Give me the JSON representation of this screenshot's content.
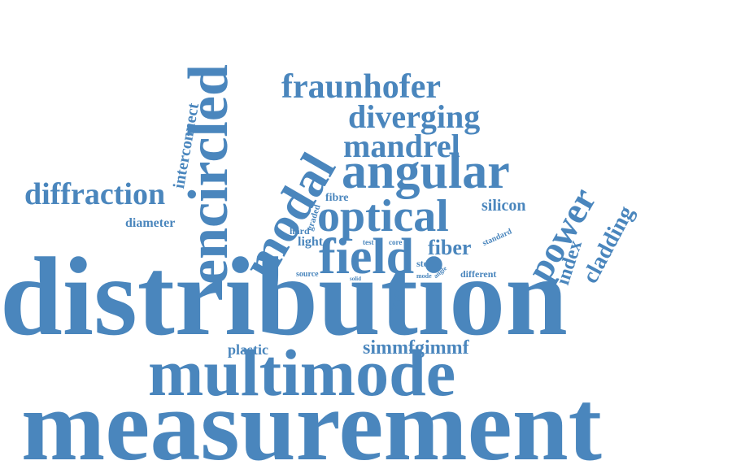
{
  "cloud": {
    "color": "#4a86bd",
    "words": {
      "measurement": "measurement",
      "distribution": "distribution",
      "multimode": "multimode",
      "encircled": "encircled",
      "modal": "modal",
      "angular": "angular",
      "optical": "optical",
      "field": "field",
      "fraunhofer": "fraunhofer",
      "diverging": "diverging",
      "mandrel": "mandrel",
      "power": "power",
      "diffraction": "diffraction",
      "cladding": "cladding",
      "index": "index",
      "simmfgimmf": "simmfgimmf",
      "interconnect": "interconnect",
      "fiber": "fiber",
      "silicon": "silicon",
      "fibre": "fibre",
      "diameter": "diameter",
      "plastic": "plastic",
      "light": "light",
      "hard": "hard",
      "graded": "graded",
      "standard": "standard",
      "different": "different",
      "source": "source",
      "test": "test",
      "core": "core",
      "step": "step",
      "angle": "angle",
      "solid": "solid",
      "mode": "mode",
      "paper": "paper"
    }
  }
}
